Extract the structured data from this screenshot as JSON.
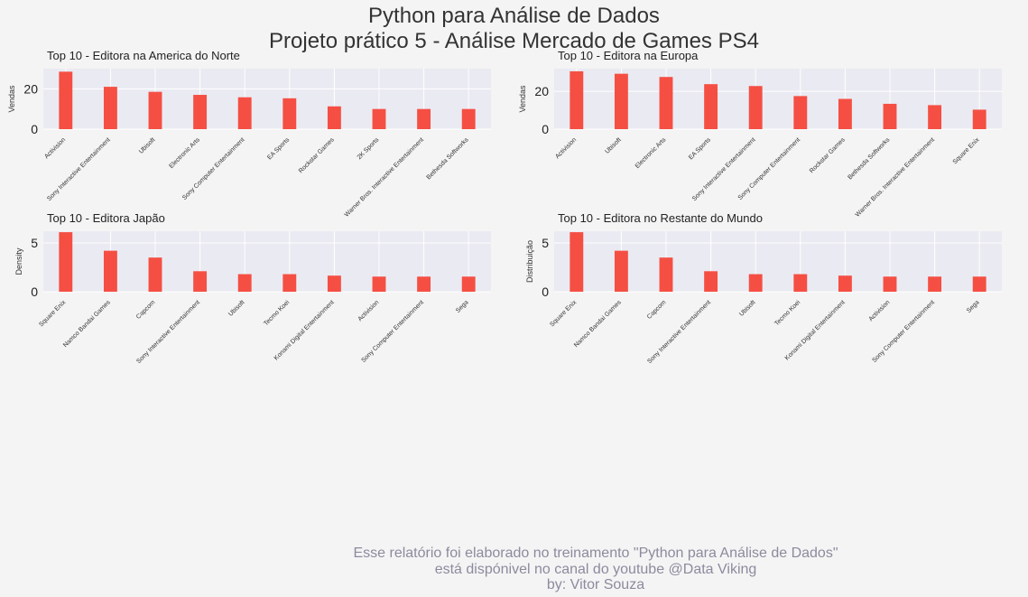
{
  "page": {
    "title_line1": "Python para Análise de Dados",
    "title_line2": "Projeto prático 5 - Análise Mercado de Games PS4"
  },
  "footer": {
    "line1": "Esse relatório foi elaborado no treinamento \"Python para Análise de Dados\"",
    "line2": "está dispónivel no canal do youtube @Data Viking",
    "line3": "by: Vitor Souza"
  },
  "colors": {
    "bar": "#f54f43",
    "plot_background": "#eaeaf2",
    "grid": "#ffffff",
    "figure_background": "#f4f4f4"
  },
  "chart_data": [
    {
      "type": "bar",
      "title": "Top 10 - Editora na America do Norte",
      "xlabel": "",
      "ylabel": "Vendas",
      "ylim": [
        0,
        30
      ],
      "yticks": [
        0,
        20
      ],
      "grid": true,
      "categories": [
        "Activision",
        "Sony Interactive Entertainment",
        "Ubisoft",
        "Electronic Arts",
        "Sony Computer Entertainment",
        "EA Sports",
        "Rockstar Games",
        "2K Sports",
        "Warner Bros. Interactive Entertainment",
        "Bethesda Softworks"
      ],
      "values": [
        28.5,
        21,
        18.5,
        17,
        15.8,
        15.3,
        11.3,
        10,
        10,
        10
      ]
    },
    {
      "type": "bar",
      "title": "Top 10 - Editora na Europa",
      "xlabel": "",
      "ylabel": "Vendas",
      "ylim": [
        0,
        32
      ],
      "yticks": [
        0,
        20
      ],
      "grid": true,
      "categories": [
        "Activision",
        "Ubisoft",
        "Electronic Arts",
        "EA Sports",
        "Sony Interactive Entertainment",
        "Sony Computer Entertainment",
        "Rockstar Games",
        "Bethesda Softworks",
        "Warner Bros. Interactive Entertainment",
        "Square Enix"
      ],
      "values": [
        30.6,
        29.3,
        27.6,
        23.8,
        22.8,
        17.5,
        16,
        13.4,
        12.7,
        10.3
      ]
    },
    {
      "type": "bar",
      "title": "Top 10 - Editora Japão",
      "xlabel": "",
      "ylabel": "Density",
      "ylim": [
        0,
        6.2
      ],
      "yticks": [
        0,
        5
      ],
      "grid": true,
      "categories": [
        "Square Enix",
        "Namco Bandai Games",
        "Capcom",
        "Sony Interactive Entertainment",
        "Ubisoft",
        "Tecmo Koei",
        "Konami Digital Entertainment",
        "Activision",
        "Sony Computer Entertainment",
        "Sega"
      ],
      "values": [
        6.1,
        4.2,
        3.5,
        2.1,
        1.8,
        1.8,
        1.65,
        1.55,
        1.55,
        1.55
      ]
    },
    {
      "type": "bar",
      "title": "Top 10 - Editora no Restante do Mundo",
      "xlabel": "",
      "ylabel": "Distribuição",
      "ylim": [
        0,
        6.2
      ],
      "yticks": [
        0,
        5
      ],
      "grid": true,
      "categories": [
        "Square Enix",
        "Namco Bandai Games",
        "Capcom",
        "Sony Interactive Entertainment",
        "Ubisoft",
        "Tecmo Koei",
        "Konami Digital Entertainment",
        "Activision",
        "Sony Computer Entertainment",
        "Sega"
      ],
      "values": [
        6.1,
        4.2,
        3.5,
        2.1,
        1.8,
        1.8,
        1.65,
        1.55,
        1.55,
        1.55
      ]
    }
  ]
}
